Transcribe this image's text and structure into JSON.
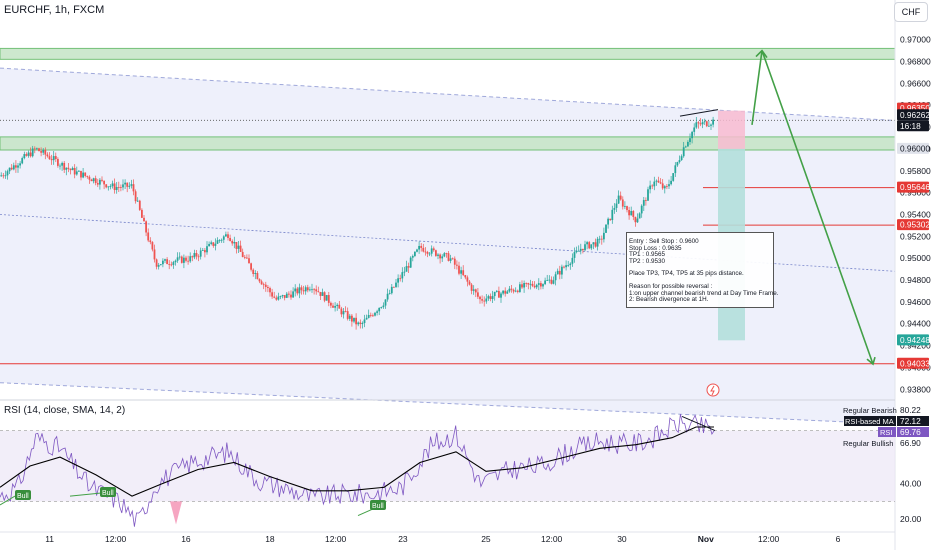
{
  "header": {
    "symbol_label": "EURCHF, 1h, FXCM",
    "unit_button": "CHF"
  },
  "rsi_header": "RSI (14, close, SMA, 14, 2)",
  "note_lines": [
    "Entry : Sell Stop : 0.9600",
    "Stop Loss : 0.9635",
    "TP1 : 0.9565",
    "TP2 : 0.9530",
    "",
    "Place TP3, TP4, TP5 at 35 pips distance.",
    "",
    "Reason for possible reversal :",
    "1:on upper channel bearish trend at Day Time Frame.",
    "2: Bearish divergence at 1H."
  ],
  "colors": {
    "up": "#26a69a",
    "down": "#ef5350",
    "zone": "#c8e6c9",
    "channel": "#e8ebfa",
    "arrow": "#43a047",
    "hline": "#e53935",
    "rsi_line": "#7e57c2",
    "rsi_ma": "#000000"
  },
  "chart_data": [
    {
      "type": "candlestick",
      "title": "EURCHF, 1h, FXCM",
      "y_ticks": [
        0.938,
        0.94,
        0.942,
        0.944,
        0.946,
        0.948,
        0.95,
        0.952,
        0.954,
        0.956,
        0.958,
        0.96,
        0.962,
        0.964,
        0.966,
        0.968,
        0.97
      ],
      "y_tick_labels": [
        "0.93800",
        "0.94000",
        "0.94200",
        "0.94400",
        "0.94600",
        "0.94800",
        "0.95000",
        "0.95200",
        "0.95400",
        "0.95600",
        "0.95800",
        "0.96000",
        "0.96200",
        "0.96400",
        "0.96600",
        "0.96800",
        "0.97000"
      ],
      "ylim": [
        0.9372,
        0.9718
      ],
      "x_tick_labels": [
        "11",
        "12:00",
        "16",
        "18",
        "12:00",
        "23",
        "25",
        "12:00",
        "30",
        "Nov",
        "12:00",
        "6"
      ],
      "price_labels": [
        {
          "text": "0.96350",
          "value": 0.9635,
          "style": "red"
        },
        {
          "text": "0.96262",
          "value": 0.96262,
          "style": "dark"
        },
        {
          "text": "16:18",
          "value": 0.96262,
          "style": "dark-sub"
        },
        {
          "text": "0.96000",
          "value": 0.96,
          "style": "gray"
        },
        {
          "text": "0.95646",
          "value": 0.95646,
          "style": "red"
        },
        {
          "text": "0.95302",
          "value": 0.95302,
          "style": "red"
        },
        {
          "text": "0.94248",
          "value": 0.94248,
          "style": "green"
        },
        {
          "text": "0.94033",
          "value": 0.94033,
          "style": "red"
        }
      ],
      "horizontal_levels": [
        0.95646,
        0.95302,
        0.94033
      ],
      "supply_zones": [
        [
          0.9682,
          0.9692
        ],
        [
          0.9599,
          0.9611
        ]
      ],
      "trade_box": {
        "entry": 0.96,
        "stop": 0.9635,
        "target": 0.94248
      },
      "path": [
        [
          0.0,
          0.9575
        ],
        [
          0.06,
          0.96
        ],
        [
          0.12,
          0.958
        ],
        [
          0.19,
          0.9565
        ],
        [
          0.22,
          0.9566
        ],
        [
          0.26,
          0.9495
        ],
        [
          0.32,
          0.95
        ],
        [
          0.38,
          0.9522
        ],
        [
          0.42,
          0.949
        ],
        [
          0.46,
          0.9462
        ],
        [
          0.52,
          0.9475
        ],
        [
          0.56,
          0.9455
        ],
        [
          0.6,
          0.9438
        ],
        [
          0.64,
          0.946
        ],
        [
          0.7,
          0.951
        ],
        [
          0.75,
          0.95
        ],
        [
          0.8,
          0.9462
        ],
        [
          0.86,
          0.9472
        ],
        [
          0.92,
          0.948
        ],
        [
          0.97,
          0.951
        ],
        [
          1.0,
          0.9515
        ],
        [
          1.03,
          0.9555
        ],
        [
          1.06,
          0.9535
        ],
        [
          1.09,
          0.9572
        ],
        [
          1.11,
          0.9562
        ],
        [
          1.14,
          0.9602
        ],
        [
          1.16,
          0.9622
        ],
        [
          1.18,
          0.9624
        ],
        [
          1.19,
          0.9626
        ]
      ]
    },
    {
      "type": "line",
      "title": "RSI (14, close, SMA, 14, 2)",
      "ylim": [
        15,
        85
      ],
      "y_ticks": [
        40,
        20
      ],
      "bands": [
        70,
        30
      ],
      "legend": [
        {
          "text": "Regular Bearish",
          "value": "80.22"
        },
        {
          "text": "RSI-based MA",
          "value": "72.12"
        },
        {
          "text": "RSI",
          "value": "69.76"
        },
        {
          "text": "Regular Bullish",
          "value": "66.90"
        }
      ],
      "labels": [
        "Bull",
        "Bull",
        "Bull"
      ],
      "rsi_path": [
        [
          0.0,
          33
        ],
        [
          0.03,
          38
        ],
        [
          0.06,
          66
        ],
        [
          0.1,
          60
        ],
        [
          0.15,
          38
        ],
        [
          0.2,
          30
        ],
        [
          0.23,
          18
        ],
        [
          0.26,
          40
        ],
        [
          0.32,
          52
        ],
        [
          0.38,
          58
        ],
        [
          0.43,
          42
        ],
        [
          0.47,
          38
        ],
        [
          0.52,
          32
        ],
        [
          0.57,
          34
        ],
        [
          0.62,
          34
        ],
        [
          0.67,
          38
        ],
        [
          0.72,
          62
        ],
        [
          0.76,
          68
        ],
        [
          0.8,
          40
        ],
        [
          0.85,
          48
        ],
        [
          0.9,
          50
        ],
        [
          0.96,
          60
        ],
        [
          1.0,
          64
        ],
        [
          1.05,
          62
        ],
        [
          1.09,
          66
        ],
        [
          1.13,
          74
        ],
        [
          1.17,
          72
        ],
        [
          1.19,
          70
        ]
      ],
      "ma_path": [
        [
          0.0,
          38
        ],
        [
          0.05,
          50
        ],
        [
          0.1,
          55
        ],
        [
          0.16,
          45
        ],
        [
          0.22,
          33
        ],
        [
          0.27,
          40
        ],
        [
          0.33,
          48
        ],
        [
          0.39,
          52
        ],
        [
          0.45,
          44
        ],
        [
          0.52,
          36
        ],
        [
          0.58,
          36
        ],
        [
          0.64,
          38
        ],
        [
          0.7,
          52
        ],
        [
          0.76,
          58
        ],
        [
          0.81,
          47
        ],
        [
          0.87,
          49
        ],
        [
          0.93,
          54
        ],
        [
          1.0,
          60
        ],
        [
          1.06,
          62
        ],
        [
          1.12,
          66
        ],
        [
          1.16,
          72
        ],
        [
          1.19,
          72
        ]
      ]
    }
  ]
}
